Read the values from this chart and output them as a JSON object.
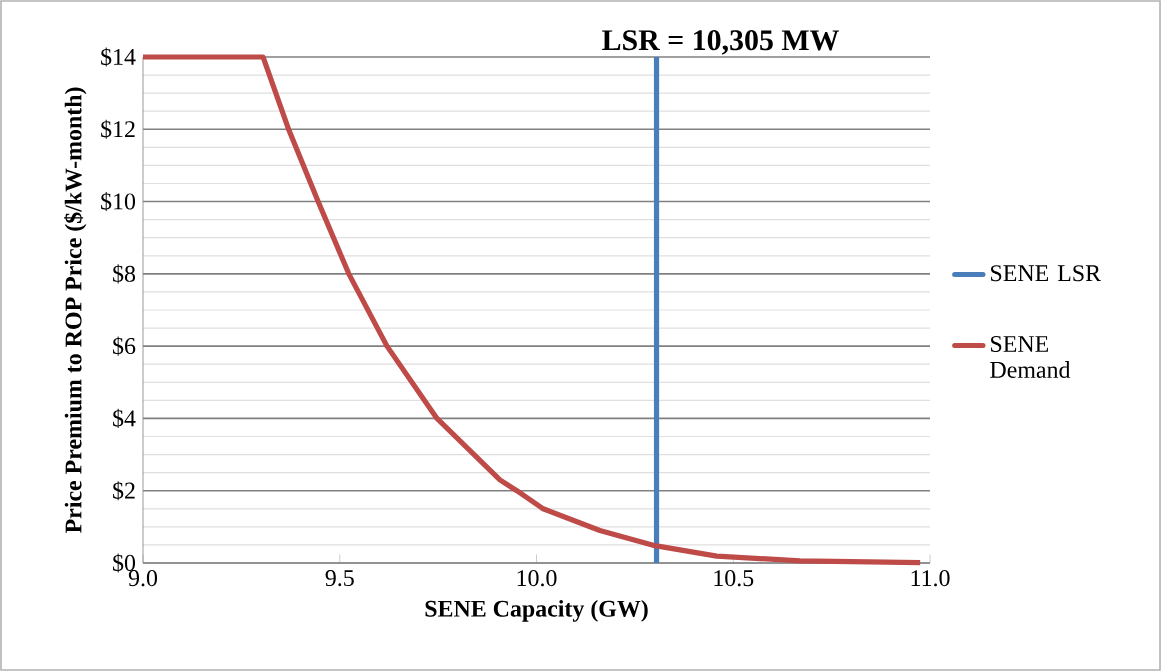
{
  "chart_data": {
    "type": "line",
    "xlabel": "SENE Capacity (GW)",
    "ylabel": "Price Premium to ROP Price  ($/kW-month)",
    "series": [
      {
        "name": "SENE LSR",
        "color": "#4a7ebb",
        "x": [
          10.305,
          10.305
        ],
        "values": [
          0,
          14
        ]
      },
      {
        "name": "SENE Demand",
        "color": "#be4b48",
        "x": [
          9.0,
          9.305,
          9.37,
          9.445,
          9.523,
          9.62,
          9.747,
          9.907,
          9.95,
          10.017,
          10.161,
          10.301,
          10.458,
          10.67,
          10.975
        ],
        "values": [
          14,
          14,
          12,
          10,
          8,
          6,
          4,
          2.3,
          2.0,
          1.5,
          0.9,
          0.48,
          0.19,
          0.06,
          0.01
        ]
      }
    ],
    "annotations": [
      {
        "text": "LSR = 10,305 MW",
        "x": 10.305,
        "y": 14
      }
    ],
    "xlim": [
      9.0,
      11.0
    ],
    "ylim": [
      0,
      14
    ],
    "xticks": [
      {
        "value": 9.0,
        "label": "9.0"
      },
      {
        "value": 9.5,
        "label": "9.5"
      },
      {
        "value": 10.0,
        "label": "10.0"
      },
      {
        "value": 10.5,
        "label": "10.5"
      },
      {
        "value": 11.0,
        "label": "11.0"
      }
    ],
    "yticks": [
      {
        "value": 0,
        "label": "$0"
      },
      {
        "value": 2,
        "label": "$2"
      },
      {
        "value": 4,
        "label": "$4"
      },
      {
        "value": 6,
        "label": "$6"
      },
      {
        "value": 8,
        "label": "$8"
      },
      {
        "value": 10,
        "label": "$10"
      },
      {
        "value": 12,
        "label": "$12"
      },
      {
        "value": 14,
        "label": "$14"
      }
    ],
    "grid": "y",
    "legend": "right",
    "marker": "none",
    "line_style": "solid"
  }
}
